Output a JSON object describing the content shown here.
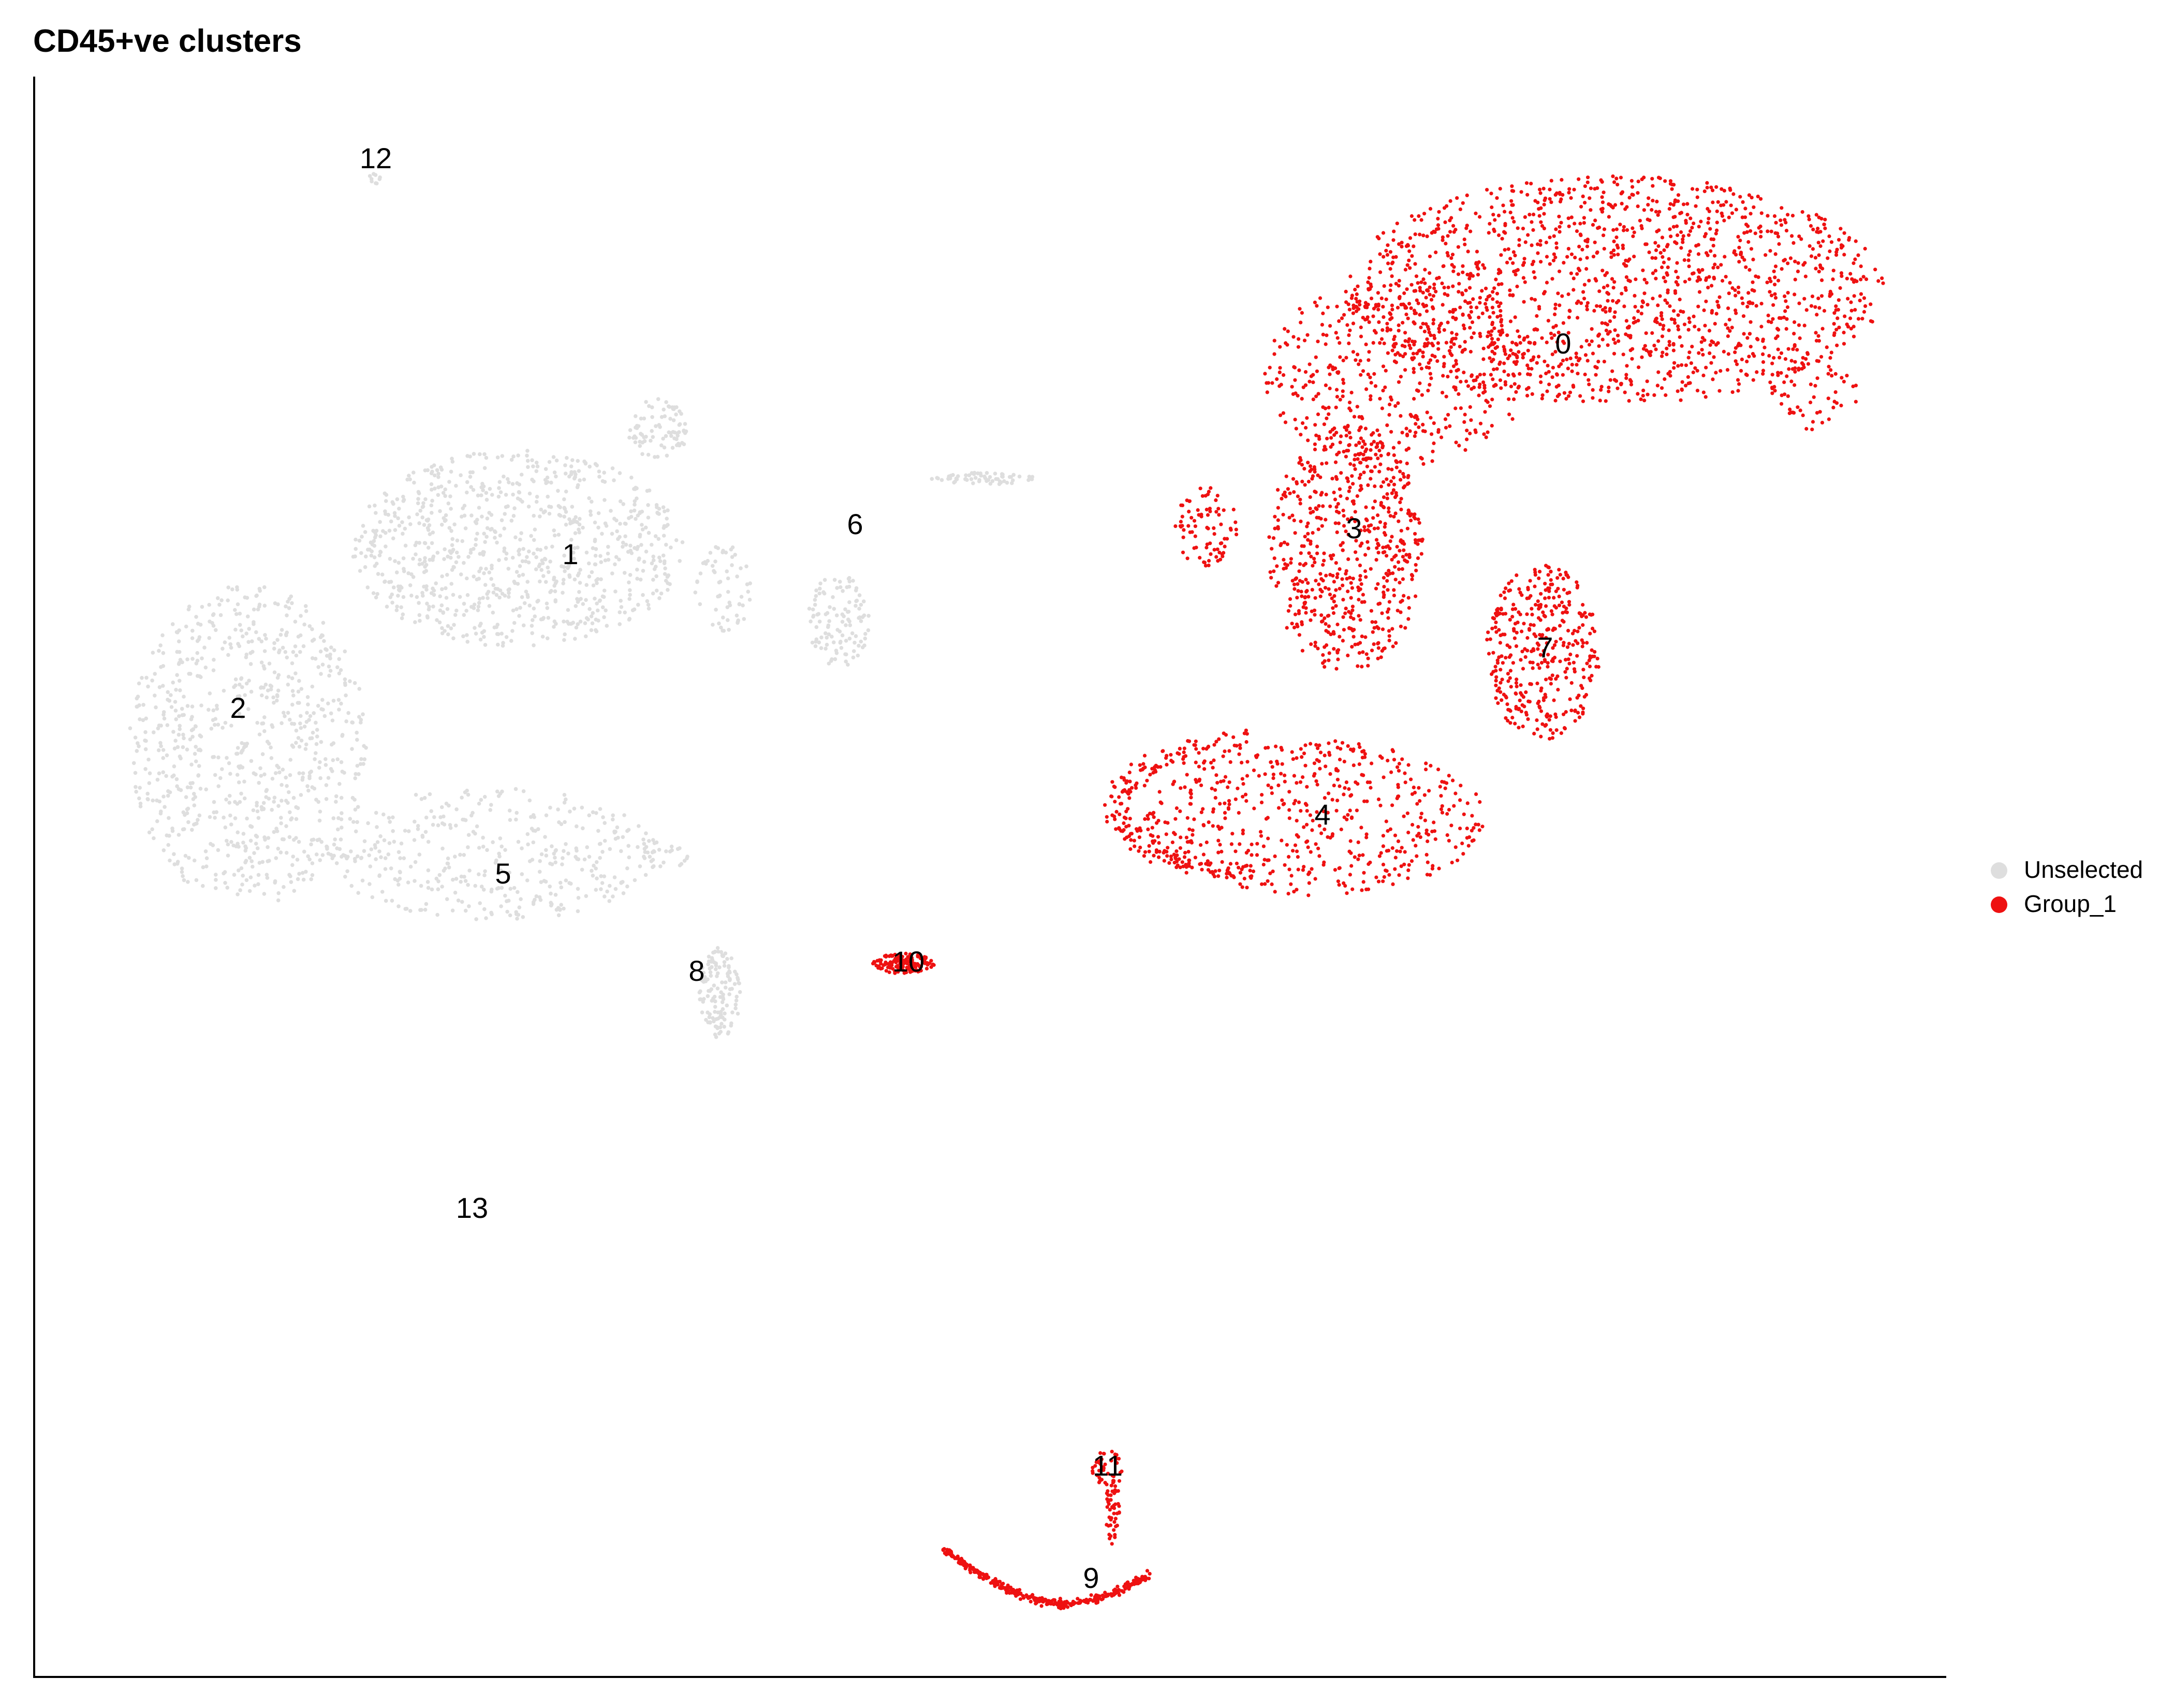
{
  "chart_data": {
    "type": "scatter",
    "title": "CD45+ve clusters",
    "xlabel": "",
    "ylabel": "",
    "grid": false,
    "legend_position": "right",
    "colors": {
      "Unselected": "#dedede",
      "Group_1": "#ee1111",
      "axis": "#000000",
      "label": "#000000"
    },
    "series": [
      {
        "name": "Unselected",
        "color": "#dedede"
      },
      {
        "name": "Group_1",
        "color": "#ee1111"
      }
    ],
    "clusters": [
      {
        "label": "0",
        "group": "Group_1"
      },
      {
        "label": "1",
        "group": "Unselected"
      },
      {
        "label": "2",
        "group": "Unselected"
      },
      {
        "label": "3",
        "group": "Group_1"
      },
      {
        "label": "4",
        "group": "Group_1"
      },
      {
        "label": "5",
        "group": "Unselected"
      },
      {
        "label": "6",
        "group": "Unselected"
      },
      {
        "label": "7",
        "group": "Group_1"
      },
      {
        "label": "8",
        "group": "Unselected"
      },
      {
        "label": "9",
        "group": "Group_1"
      },
      {
        "label": "10",
        "group": "Group_1"
      },
      {
        "label": "11",
        "group": "Group_1"
      },
      {
        "label": "12",
        "group": "Unselected"
      },
      {
        "label": "13",
        "group": "Unselected"
      }
    ]
  }
}
